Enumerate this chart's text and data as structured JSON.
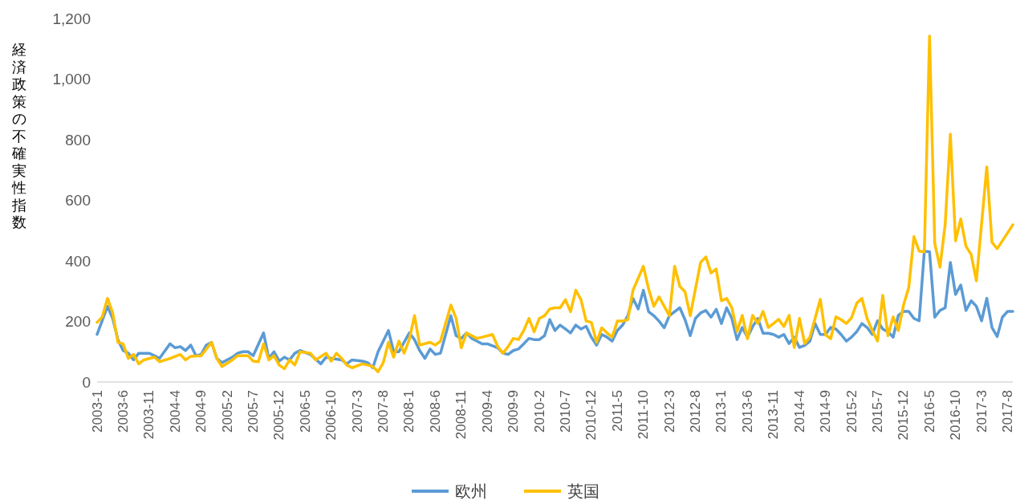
{
  "chart_data": {
    "type": "line",
    "ylabel": "経済政策の不確実性指数",
    "legend": "bottom",
    "xlim": [
      "2003-01",
      "2017-09"
    ],
    "ylim": [
      0,
      1200
    ],
    "yticks": [
      0,
      200,
      400,
      600,
      800,
      {
        "value": 1000,
        "label": "1,000"
      },
      {
        "value": 1200,
        "label": "1,200"
      }
    ],
    "xticks": [
      {
        "value": "2003-01",
        "label": "2003-1"
      },
      {
        "value": "2003-06",
        "label": "2003-6"
      },
      {
        "value": "2003-11",
        "label": "2003-11"
      },
      {
        "value": "2004-04",
        "label": "2004-4"
      },
      {
        "value": "2004-09",
        "label": "2004-9"
      },
      {
        "value": "2005-02",
        "label": "2005-2"
      },
      {
        "value": "2005-07",
        "label": "2005-7"
      },
      {
        "value": "2005-12",
        "label": "2005-12"
      },
      {
        "value": "2006-05",
        "label": "2006-5"
      },
      {
        "value": "2006-10",
        "label": "2006-10"
      },
      {
        "value": "2007-03",
        "label": "2007-3"
      },
      {
        "value": "2007-08",
        "label": "2007-8"
      },
      {
        "value": "2008-01",
        "label": "2008-1"
      },
      {
        "value": "2008-06",
        "label": "2008-6"
      },
      {
        "value": "2008-11",
        "label": "2008-11"
      },
      {
        "value": "2009-04",
        "label": "2009-4"
      },
      {
        "value": "2009-09",
        "label": "2009-9"
      },
      {
        "value": "2010-02",
        "label": "2010-2"
      },
      {
        "value": "2010-07",
        "label": "2010-7"
      },
      {
        "value": "2010-12",
        "label": "2010-12"
      },
      {
        "value": "2011-05",
        "label": "2011-5"
      },
      {
        "value": "2011-10",
        "label": "2011-10"
      },
      {
        "value": "2012-03",
        "label": "2012-3"
      },
      {
        "value": "2012-08",
        "label": "2012-8"
      },
      {
        "value": "2013-01",
        "label": "2013-1"
      },
      {
        "value": "2013-06",
        "label": "2013-6"
      },
      {
        "value": "2013-11",
        "label": "2013-11"
      },
      {
        "value": "2014-04",
        "label": "2014-4"
      },
      {
        "value": "2014-09",
        "label": "2014-9"
      },
      {
        "value": "2015-02",
        "label": "2015-2"
      },
      {
        "value": "2015-07",
        "label": "2015-7"
      },
      {
        "value": "2015-12",
        "label": "2015-12"
      },
      {
        "value": "2016-05",
        "label": "2016-5"
      },
      {
        "value": "2016-10",
        "label": "2016-10"
      },
      {
        "value": "2017-03",
        "label": "2017-3"
      },
      {
        "value": "2017-08",
        "label": "2017-8"
      }
    ],
    "series": [
      {
        "name": "欧州",
        "color": "#5b9bd5",
        "x": [
          "2003-01",
          "2003-03",
          "2003-04",
          "2003-05",
          "2003-06",
          "2003-07",
          "2003-08",
          "2003-09",
          "2003-11",
          "2003-12",
          "2004-01",
          "2004-03",
          "2004-04",
          "2004-05",
          "2004-06",
          "2004-07",
          "2004-08",
          "2004-09",
          "2004-10",
          "2004-11",
          "2004-12",
          "2005-01",
          "2005-03",
          "2005-04",
          "2005-05",
          "2005-06",
          "2005-07",
          "2005-09",
          "2005-10",
          "2005-11",
          "2005-12",
          "2006-01",
          "2006-02",
          "2006-03",
          "2006-04",
          "2006-06",
          "2006-08",
          "2006-09",
          "2006-10",
          "2006-12",
          "2007-01",
          "2007-02",
          "2007-04",
          "2007-05",
          "2007-06",
          "2007-07",
          "2007-09",
          "2007-10",
          "2007-11",
          "2008-01",
          "2008-02",
          "2008-03",
          "2008-04",
          "2008-05",
          "2008-06",
          "2008-07",
          "2008-09",
          "2008-10",
          "2008-11",
          "2008-12",
          "2009-01",
          "2009-02",
          "2009-03",
          "2009-04",
          "2009-06",
          "2009-07",
          "2009-08",
          "2009-09",
          "2009-10",
          "2009-11",
          "2009-12",
          "2010-01",
          "2010-02",
          "2010-03",
          "2010-04",
          "2010-05",
          "2010-06",
          "2010-07",
          "2010-08",
          "2010-09",
          "2010-10",
          "2010-11",
          "2010-12",
          "2011-01",
          "2011-02",
          "2011-03",
          "2011-04",
          "2011-05",
          "2011-06",
          "2011-07",
          "2011-08",
          "2011-09",
          "2011-10",
          "2011-11",
          "2011-12",
          "2012-01",
          "2012-02",
          "2012-03",
          "2012-04",
          "2012-05",
          "2012-06",
          "2012-07",
          "2012-08",
          "2012-09",
          "2012-10",
          "2012-11",
          "2012-12",
          "2013-01",
          "2013-02",
          "2013-03",
          "2013-04",
          "2013-05",
          "2013-06",
          "2013-07",
          "2013-08",
          "2013-09",
          "2013-10",
          "2013-11",
          "2013-12",
          "2014-01",
          "2014-02",
          "2014-03",
          "2014-04",
          "2014-05",
          "2014-06",
          "2014-07",
          "2014-08",
          "2014-09",
          "2014-10",
          "2014-11",
          "2014-12",
          "2015-01",
          "2015-02",
          "2015-03",
          "2015-04",
          "2015-05",
          "2015-06",
          "2015-07",
          "2015-08",
          "2015-09",
          "2015-10",
          "2015-11",
          "2015-12",
          "2016-01",
          "2016-02",
          "2016-03",
          "2016-04",
          "2016-05",
          "2016-06",
          "2016-07",
          "2016-08",
          "2016-09",
          "2016-10",
          "2016-11",
          "2016-12",
          "2017-01",
          "2017-02",
          "2017-03",
          "2017-04",
          "2017-05",
          "2017-06",
          "2017-07",
          "2017-08",
          "2017-09"
        ],
        "values": [
          157,
          250,
          210,
          140,
          104,
          95,
          73,
          95,
          95,
          87,
          78,
          126,
          113,
          117,
          104,
          122,
          87,
          91,
          122,
          131,
          78,
          64,
          82,
          95,
          100,
          100,
          87,
          162,
          78,
          100,
          69,
          82,
          73,
          95,
          104,
          91,
          60,
          82,
          78,
          73,
          60,
          73,
          69,
          64,
          47,
          100,
          170,
          100,
          100,
          162,
          140,
          104,
          78,
          109,
          91,
          95,
          219,
          153,
          144,
          162,
          144,
          135,
          126,
          126,
          113,
          95,
          91,
          104,
          109,
          126,
          144,
          140,
          140,
          153,
          206,
          170,
          188,
          175,
          162,
          188,
          175,
          184,
          148,
          122,
          157,
          148,
          135,
          170,
          188,
          219,
          276,
          241,
          303,
          232,
          219,
          201,
          179,
          219,
          232,
          245,
          206,
          153,
          210,
          228,
          236,
          214,
          240,
          193,
          245,
          210,
          140,
          180,
          148,
          183,
          210,
          161,
          161,
          157,
          148,
          157,
          127,
          148,
          114,
          121,
          135,
          193,
          157,
          157,
          180,
          175,
          157,
          135,
          148,
          166,
          193,
          180,
          157,
          202,
          175,
          166,
          148,
          220,
          233,
          233,
          210,
          202,
          432,
          430,
          214,
          236,
          245,
          395,
          289,
          320,
          236,
          268,
          250,
          202,
          276,
          180,
          150,
          214,
          233,
          233
        ]
      },
      {
        "name": "英国",
        "color": "#ffc000",
        "x": [
          "2003-01",
          "2003-02",
          "2003-03",
          "2003-04",
          "2003-05",
          "2003-06",
          "2003-07",
          "2003-08",
          "2003-09",
          "2003-10",
          "2003-12",
          "2004-01",
          "2004-03",
          "2004-05",
          "2004-06",
          "2004-07",
          "2004-09",
          "2004-11",
          "2004-12",
          "2005-01",
          "2005-03",
          "2005-04",
          "2005-06",
          "2005-07",
          "2005-08",
          "2005-09",
          "2005-10",
          "2005-11",
          "2005-12",
          "2006-01",
          "2006-02",
          "2006-03",
          "2006-04",
          "2006-06",
          "2006-07",
          "2006-09",
          "2006-10",
          "2006-11",
          "2006-12",
          "2007-01",
          "2007-02",
          "2007-04",
          "2007-05",
          "2007-06",
          "2007-07",
          "2007-08",
          "2007-09",
          "2007-10",
          "2007-11",
          "2007-12",
          "2008-01",
          "2008-02",
          "2008-03",
          "2008-05",
          "2008-06",
          "2008-07",
          "2008-09",
          "2008-10",
          "2008-11",
          "2008-12",
          "2009-01",
          "2009-02",
          "2009-03",
          "2009-05",
          "2009-06",
          "2009-07",
          "2009-08",
          "2009-09",
          "2009-10",
          "2009-11",
          "2009-12",
          "2010-01",
          "2010-02",
          "2010-03",
          "2010-04",
          "2010-05",
          "2010-06",
          "2010-07",
          "2010-08",
          "2010-09",
          "2010-10",
          "2010-11",
          "2010-12",
          "2011-01",
          "2011-02",
          "2011-03",
          "2011-04",
          "2011-05",
          "2011-06",
          "2011-07",
          "2011-08",
          "2011-10",
          "2011-11",
          "2011-12",
          "2012-01",
          "2012-02",
          "2012-03",
          "2012-04",
          "2012-05",
          "2012-06",
          "2012-07",
          "2012-08",
          "2012-09",
          "2012-10",
          "2012-11",
          "2012-12",
          "2013-01",
          "2013-02",
          "2013-03",
          "2013-04",
          "2013-05",
          "2013-06",
          "2013-07",
          "2013-08",
          "2013-09",
          "2013-10",
          "2013-11",
          "2013-12",
          "2014-01",
          "2014-02",
          "2014-03",
          "2014-04",
          "2014-05",
          "2014-06",
          "2014-07",
          "2014-08",
          "2014-09",
          "2014-10",
          "2014-11",
          "2014-12",
          "2015-01",
          "2015-02",
          "2015-03",
          "2015-04",
          "2015-05",
          "2015-06",
          "2015-07",
          "2015-08",
          "2015-09",
          "2015-10",
          "2015-11",
          "2015-12",
          "2016-01",
          "2016-02",
          "2016-03",
          "2016-04",
          "2016-05",
          "2016-06",
          "2016-07",
          "2016-08",
          "2016-09",
          "2016-10",
          "2016-11",
          "2016-12",
          "2017-01",
          "2017-02",
          "2017-04",
          "2017-05",
          "2017-06",
          "2017-07",
          "2017-09"
        ],
        "values": [
          197,
          215,
          276,
          228,
          131,
          126,
          78,
          91,
          60,
          73,
          82,
          67,
          78,
          91,
          73,
          85,
          87,
          131,
          78,
          51,
          73,
          87,
          87,
          69,
          67,
          126,
          73,
          87,
          56,
          44,
          73,
          56,
          100,
          95,
          73,
          95,
          69,
          95,
          78,
          56,
          47,
          60,
          56,
          51,
          34,
          64,
          131,
          82,
          135,
          95,
          140,
          219,
          122,
          131,
          122,
          135,
          254,
          210,
          113,
          162,
          153,
          144,
          148,
          157,
          117,
          95,
          117,
          144,
          140,
          170,
          210,
          166,
          210,
          219,
          241,
          245,
          245,
          272,
          232,
          303,
          272,
          201,
          197,
          131,
          179,
          162,
          148,
          201,
          201,
          206,
          303,
          382,
          307,
          250,
          281,
          250,
          219,
          382,
          316,
          298,
          219,
          307,
          395,
          413,
          360,
          373,
          268,
          276,
          245,
          167,
          220,
          143,
          220,
          193,
          233,
          180,
          193,
          207,
          183,
          220,
          114,
          210,
          127,
          148,
          210,
          273,
          156,
          143,
          215,
          206,
          193,
          212,
          260,
          276,
          210,
          170,
          135,
          286,
          153,
          215,
          170,
          254,
          312,
          480,
          432,
          430,
          1142,
          458,
          379,
          519,
          818,
          466,
          538,
          448,
          421,
          334,
          710,
          461,
          440,
          466,
          519
        ]
      }
    ]
  }
}
